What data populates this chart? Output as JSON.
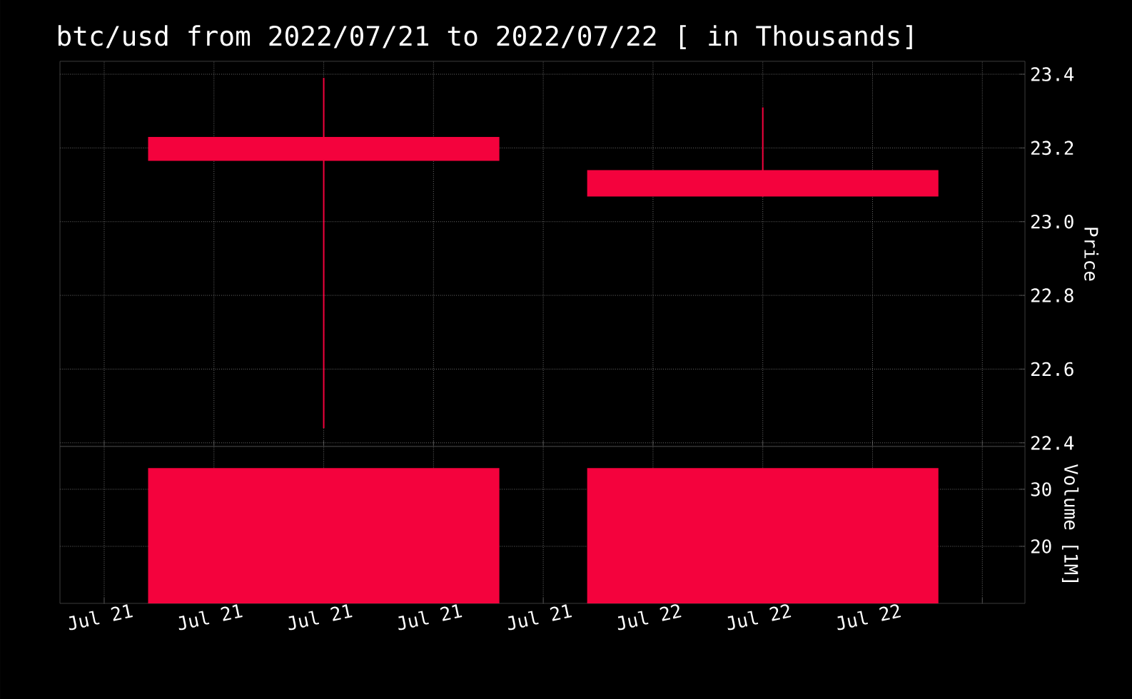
{
  "chart_data": [
    {
      "type": "candlestick",
      "title": "btc/usd from 2022/07/21 to 2022/07/22 [ in Thousands]",
      "ylabel": "Price",
      "color": "#f4023d",
      "x": [
        "2022-07-21T11:30",
        "2022-07-22T10:30"
      ],
      "ohlc": [
        [
          23.23,
          23.39,
          22.44,
          23.165
        ],
        [
          23.14,
          23.31,
          23.068,
          23.068
        ]
      ],
      "xlim": [
        "2022-07-20T21:41",
        "2022-07-23T00:14"
      ],
      "ylim": [
        22.39,
        23.435
      ],
      "xticks": [
        {
          "value": "2022-07-21T00:00",
          "label": null
        },
        {
          "value": "2022-07-21T05:45",
          "label": null
        },
        {
          "value": "2022-07-21T11:30",
          "label": null
        },
        {
          "value": "2022-07-21T17:15",
          "label": null
        },
        {
          "value": "2022-07-21T23:00",
          "label": null
        },
        {
          "value": "2022-07-22T04:45",
          "label": null
        },
        {
          "value": "2022-07-22T10:30",
          "label": null
        },
        {
          "value": "2022-07-22T16:15",
          "label": null
        },
        {
          "value": "2022-07-22T22:00",
          "label": null
        }
      ],
      "yticks": [
        {
          "value": 22.4,
          "label": "22.4"
        },
        {
          "value": 22.6,
          "label": "22.6"
        },
        {
          "value": 22.8,
          "label": "22.8"
        },
        {
          "value": 23.0,
          "label": "23.0"
        },
        {
          "value": 23.2,
          "label": "23.2"
        },
        {
          "value": 23.4,
          "label": "23.4"
        }
      ],
      "grid": true,
      "tick_labels": "y"
    },
    {
      "type": "bar",
      "ylabel": "Volume [1M]",
      "color": "#f4023d",
      "x": [
        "2022-07-21T11:30",
        "2022-07-22T10:30"
      ],
      "values": [
        33.7,
        33.7
      ],
      "xlim": [
        "2022-07-20T21:41",
        "2022-07-23T00:14"
      ],
      "ylim": [
        10,
        37.5
      ],
      "xticks": [
        {
          "value": "2022-07-21T00:00",
          "label": "Jul 21"
        },
        {
          "value": "2022-07-21T05:45",
          "label": "Jul 21"
        },
        {
          "value": "2022-07-21T11:30",
          "label": "Jul 21"
        },
        {
          "value": "2022-07-21T17:15",
          "label": "Jul 21"
        },
        {
          "value": "2022-07-21T23:00",
          "label": "Jul 21"
        },
        {
          "value": "2022-07-22T04:45",
          "label": "Jul 22"
        },
        {
          "value": "2022-07-22T10:30",
          "label": "Jul 22"
        },
        {
          "value": "2022-07-22T16:15",
          "label": "Jul 22"
        },
        {
          "value": "2022-07-22T22:00",
          "label": null
        }
      ],
      "yticks": [
        20,
        30
      ],
      "grid": true
    }
  ]
}
